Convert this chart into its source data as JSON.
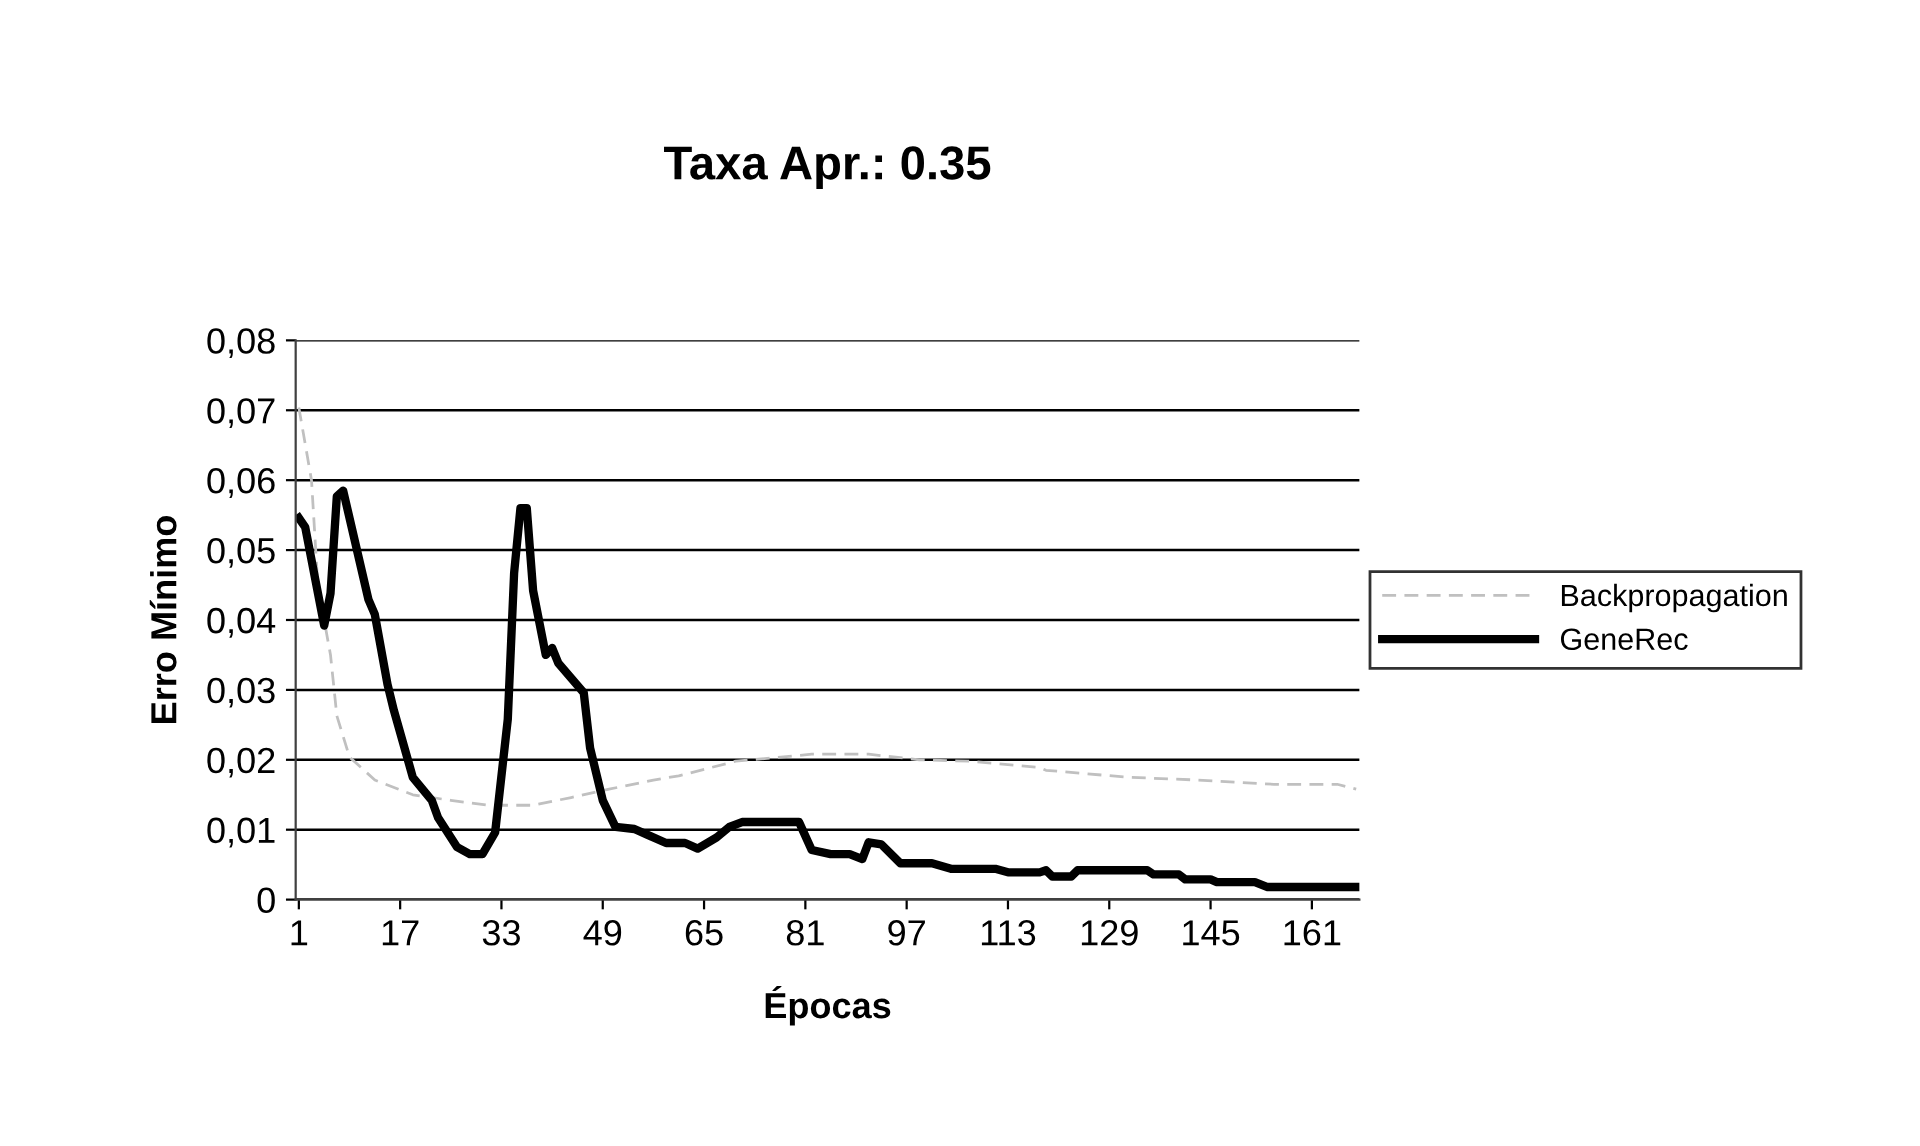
{
  "chart_data": {
    "type": "line",
    "title": "Taxa Apr.: 0.35",
    "xlabel": "Épocas",
    "ylabel": "Erro Mínimo",
    "xlim": [
      0.5,
      168.5
    ],
    "xticks": [
      1,
      17,
      33,
      49,
      65,
      81,
      97,
      113,
      129,
      145,
      161
    ],
    "ylim": [
      0,
      0.08
    ],
    "yticks": [
      0,
      {
        "value": 0.01,
        "label": "0,01"
      },
      {
        "value": 0.02,
        "label": "0,02"
      },
      {
        "value": 0.03,
        "label": "0,03"
      },
      {
        "value": 0.04,
        "label": "0,04"
      },
      {
        "value": 0.05,
        "label": "0,05"
      },
      {
        "value": 0.06,
        "label": "0,06"
      },
      {
        "value": 0.07,
        "label": "0,07"
      },
      {
        "value": 0.08,
        "label": "0,08"
      }
    ],
    "grid": "y",
    "legend": "right",
    "marker": "none",
    "series": [
      {
        "name": "Backpropagation",
        "color": "#c0c0c0",
        "line_style": "dashed",
        "x": [
          1,
          3,
          4,
          6,
          7,
          9,
          13,
          19,
          25,
          31,
          38,
          44,
          50,
          57,
          61,
          70,
          82,
          91,
          99,
          107,
          118,
          119,
          132,
          143,
          155,
          165,
          168
        ],
        "values": [
          0.0704,
          0.06,
          0.045,
          0.035,
          0.0263,
          0.0204,
          0.0171,
          0.015,
          0.0142,
          0.0135,
          0.0135,
          0.0146,
          0.0158,
          0.0171,
          0.0177,
          0.0198,
          0.0208,
          0.0208,
          0.02,
          0.0198,
          0.0189,
          0.0185,
          0.0175,
          0.0171,
          0.0165,
          0.0165,
          0.0158
        ]
      },
      {
        "name": "GeneRec",
        "color": "#000000",
        "line_style": "solid",
        "x": [
          1,
          2,
          5,
          6,
          7,
          8,
          12,
          13,
          15,
          16,
          19,
          22,
          23,
          26,
          28,
          30,
          32,
          34,
          35,
          36,
          37,
          38,
          40,
          41,
          42,
          44,
          46,
          47,
          49,
          51,
          54,
          56,
          59,
          62,
          64,
          67,
          69,
          71,
          80,
          82,
          85,
          88,
          90,
          91,
          93,
          96,
          101,
          104,
          111,
          113,
          118,
          119,
          120,
          123,
          124,
          135,
          136,
          140,
          141,
          145,
          146,
          152,
          154,
          168
        ],
        "values": [
          0.0546,
          0.0533,
          0.0392,
          0.0438,
          0.0577,
          0.0585,
          0.0429,
          0.0408,
          0.0308,
          0.0271,
          0.0175,
          0.0142,
          0.0117,
          0.0075,
          0.0065,
          0.0065,
          0.0096,
          0.0258,
          0.0467,
          0.056,
          0.056,
          0.0442,
          0.035,
          0.036,
          0.0338,
          0.0317,
          0.0296,
          0.0217,
          0.0142,
          0.0104,
          0.0101,
          0.0093,
          0.0081,
          0.0081,
          0.0073,
          0.0089,
          0.0104,
          0.0111,
          0.0111,
          0.0071,
          0.0065,
          0.0065,
          0.0058,
          0.0082,
          0.0079,
          0.0052,
          0.0052,
          0.0044,
          0.0044,
          0.0039,
          0.0039,
          0.0042,
          0.0033,
          0.0033,
          0.0042,
          0.0042,
          0.0036,
          0.0036,
          0.0029,
          0.0029,
          0.0025,
          0.0025,
          0.0018,
          0.0018
        ]
      }
    ]
  }
}
